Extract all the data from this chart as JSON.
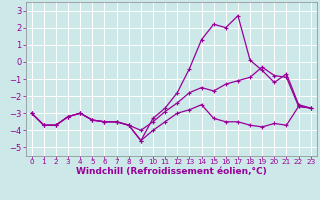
{
  "bg_color": "#cde8e8",
  "grid_color": "#aacccc",
  "line_color": "#990099",
  "xlabel": "Windchill (Refroidissement éolien,°C)",
  "xlabel_fontsize": 6.5,
  "xtick_fontsize": 5.2,
  "ytick_fontsize": 6,
  "ylim": [
    -5.5,
    3.5
  ],
  "xlim": [
    -0.5,
    23.5
  ],
  "yticks": [
    -5,
    -4,
    -3,
    -2,
    -1,
    0,
    1,
    2,
    3
  ],
  "xticks": [
    0,
    1,
    2,
    3,
    4,
    5,
    6,
    7,
    8,
    9,
    10,
    11,
    12,
    13,
    14,
    15,
    16,
    17,
    18,
    19,
    20,
    21,
    22,
    23
  ],
  "line1_x": [
    0,
    1,
    2,
    3,
    4,
    5,
    6,
    7,
    8,
    9,
    10,
    11,
    12,
    13,
    14,
    15,
    16,
    17,
    18,
    19,
    20,
    21,
    22,
    23
  ],
  "line1_y": [
    -3.0,
    -3.7,
    -3.7,
    -3.2,
    -3.0,
    -3.4,
    -3.5,
    -3.5,
    -3.7,
    -4.0,
    -3.5,
    -2.9,
    -2.4,
    -1.8,
    -1.5,
    -1.7,
    -1.3,
    -1.1,
    -0.9,
    -0.3,
    -0.8,
    -0.9,
    -2.6,
    -2.7
  ],
  "line2_x": [
    0,
    1,
    2,
    3,
    4,
    5,
    6,
    7,
    8,
    9,
    10,
    11,
    12,
    13,
    14,
    15,
    16,
    17,
    18,
    19,
    20,
    21,
    22,
    23
  ],
  "line2_y": [
    -3.0,
    -3.7,
    -3.7,
    -3.2,
    -3.0,
    -3.4,
    -3.5,
    -3.5,
    -3.7,
    -4.6,
    -3.3,
    -2.7,
    -1.8,
    -0.4,
    1.3,
    2.2,
    2.0,
    2.7,
    0.1,
    -0.5,
    -1.2,
    -0.7,
    -2.5,
    -2.7
  ],
  "line3_x": [
    0,
    1,
    2,
    3,
    4,
    5,
    6,
    7,
    8,
    9,
    10,
    11,
    12,
    13,
    14,
    15,
    16,
    17,
    18,
    19,
    20,
    21,
    22,
    23
  ],
  "line3_y": [
    -3.0,
    -3.7,
    -3.7,
    -3.2,
    -3.0,
    -3.4,
    -3.5,
    -3.5,
    -3.7,
    -4.6,
    -4.0,
    -3.5,
    -3.0,
    -2.8,
    -2.5,
    -3.3,
    -3.5,
    -3.5,
    -3.7,
    -3.8,
    -3.6,
    -3.7,
    -2.6,
    -2.7
  ]
}
